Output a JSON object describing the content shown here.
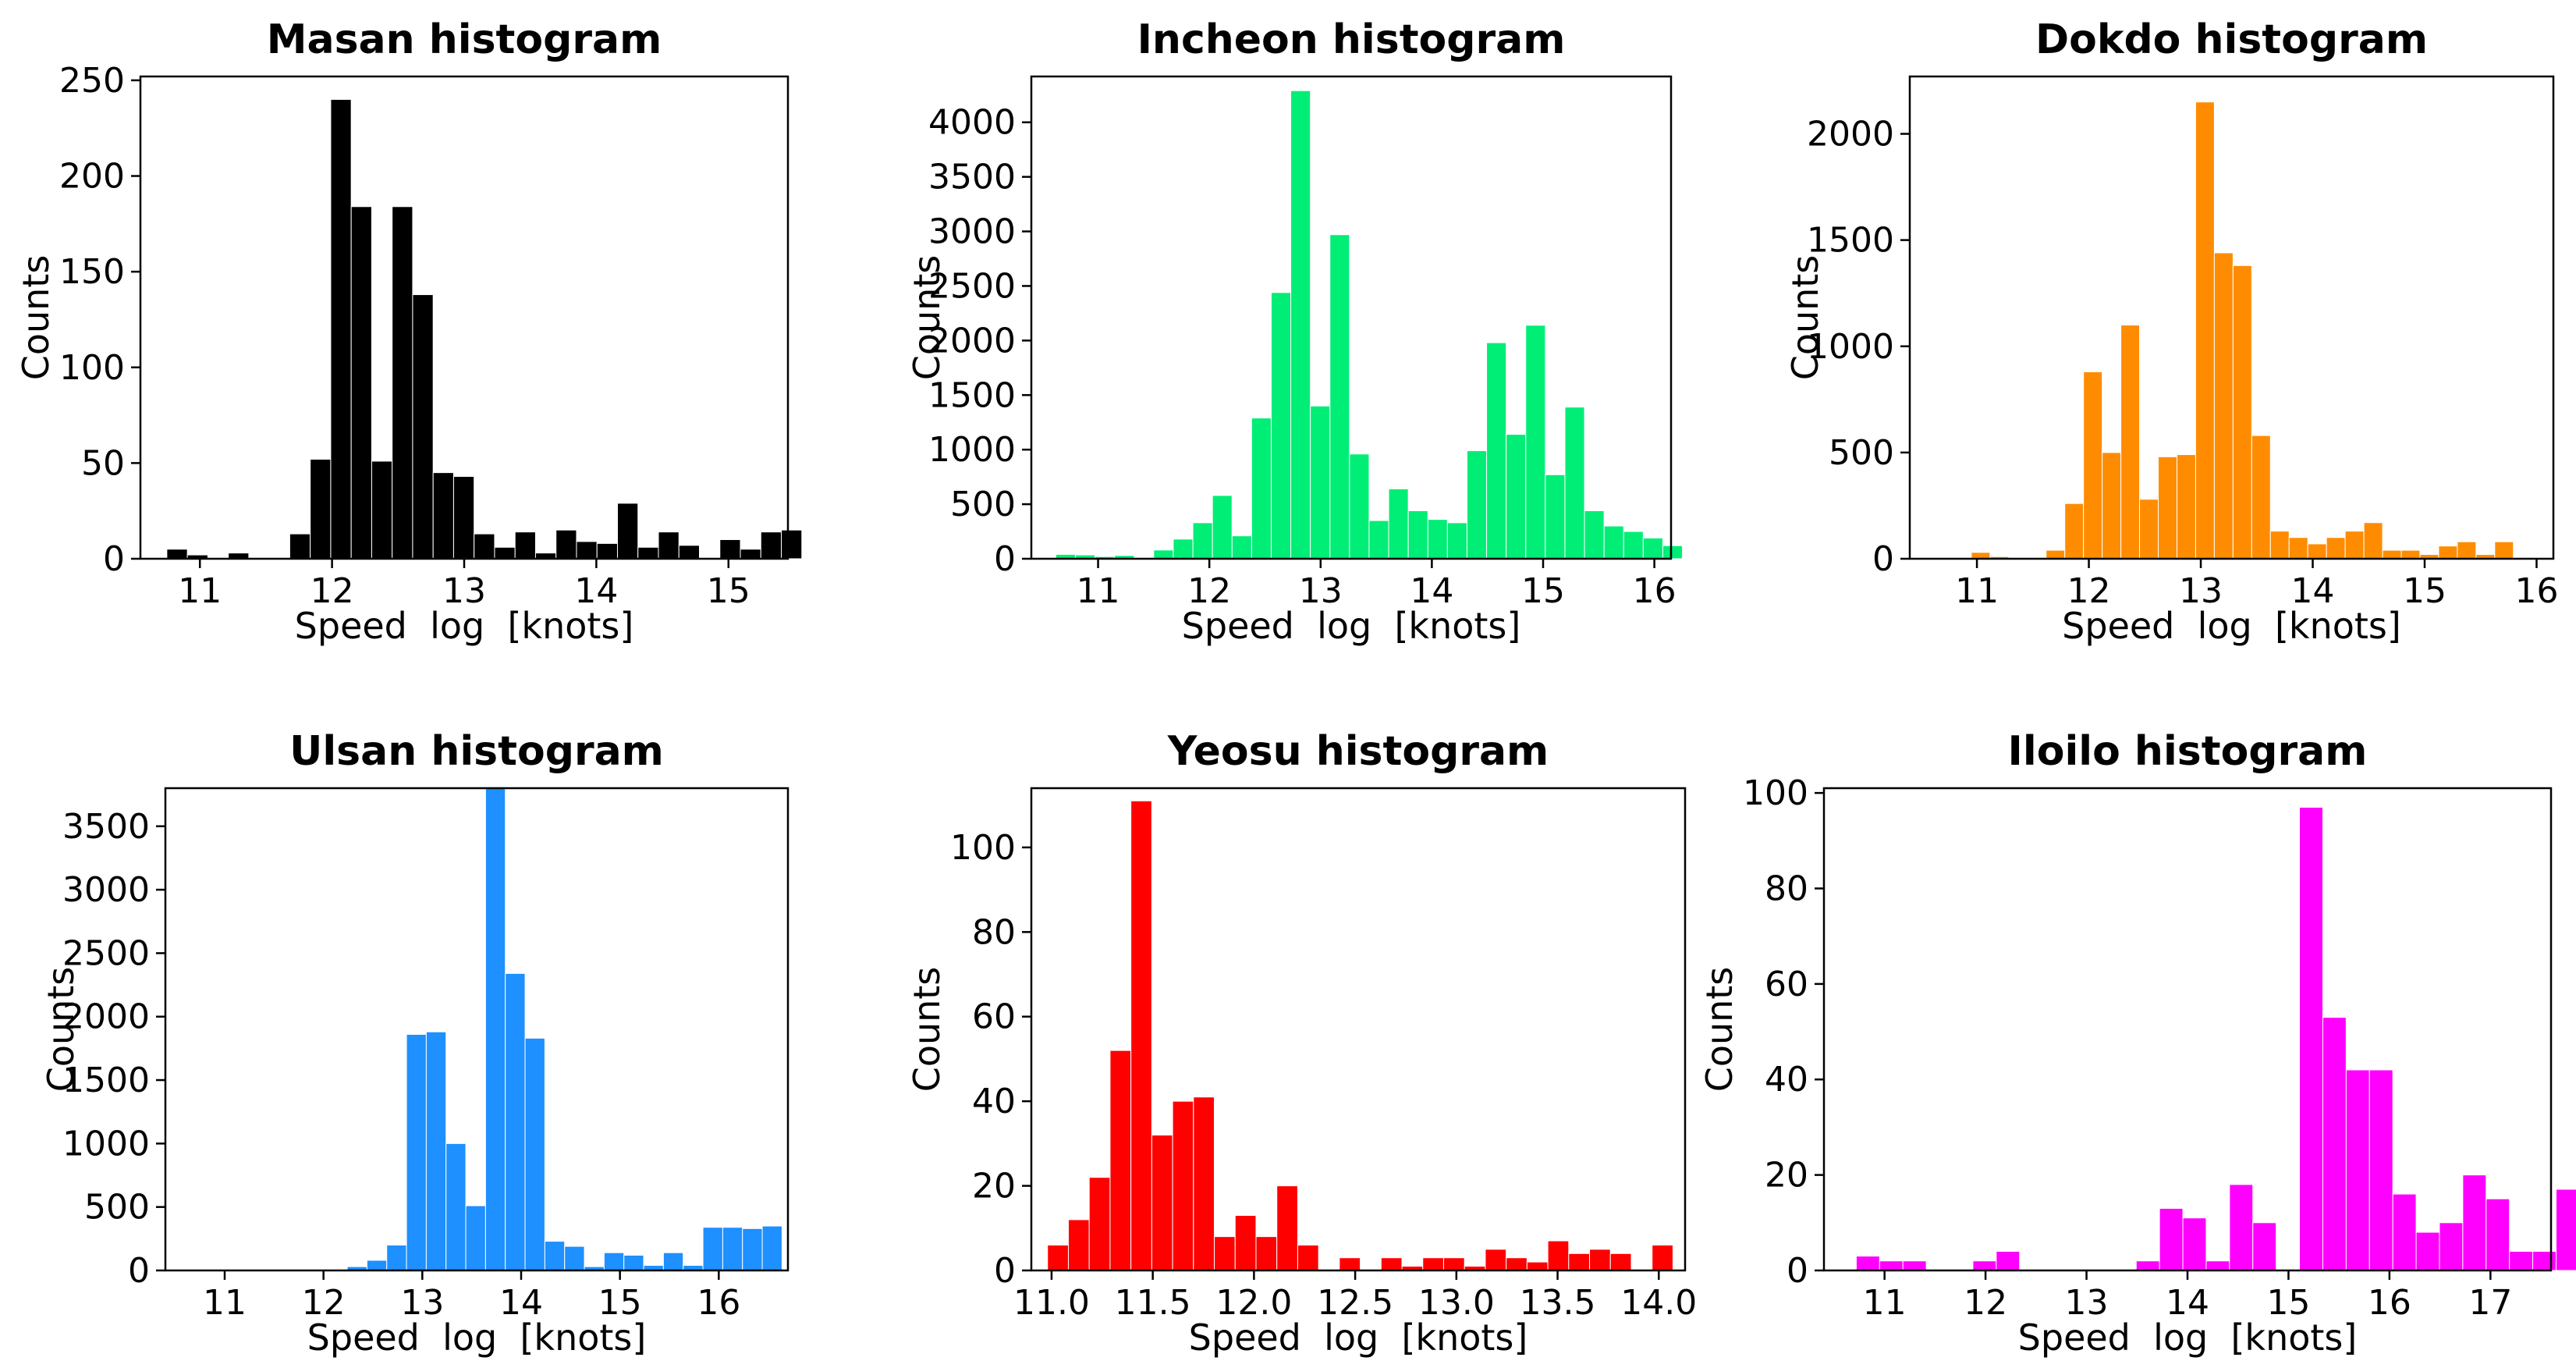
{
  "chart_data": [
    {
      "type": "bar",
      "title": "Masan  histogram",
      "xlabel": "Speed  log  [knots]",
      "ylabel": "Counts",
      "color": "#000000",
      "xlim": [
        10.55,
        15.45
      ],
      "ylim": [
        0,
        252
      ],
      "xticks": [
        11,
        12,
        13,
        14,
        15
      ],
      "xtick_labels": [
        "11",
        "12",
        "13",
        "14",
        "15"
      ],
      "yticks": [
        0,
        50,
        100,
        150,
        200,
        250
      ],
      "ytick_labels": [
        "0",
        "50",
        "100",
        "150",
        "200",
        "250"
      ],
      "bin_start": 10.75,
      "bin_width": 0.155,
      "values": [
        5,
        2,
        0,
        3,
        0,
        0,
        13,
        52,
        240,
        184,
        51,
        184,
        138,
        45,
        43,
        13,
        6,
        14,
        3,
        15,
        9,
        8,
        29,
        6,
        14,
        7,
        0,
        10,
        5,
        14,
        15
      ]
    },
    {
      "type": "bar",
      "title": "Incheon  histogram",
      "xlabel": "Speed  log  [knots]",
      "ylabel": "Counts",
      "color": "#00ee76",
      "xlim": [
        10.4,
        16.15
      ],
      "ylim": [
        0,
        4420
      ],
      "xticks": [
        11,
        12,
        13,
        14,
        15,
        16
      ],
      "xtick_labels": [
        "11",
        "12",
        "13",
        "14",
        "15",
        "16"
      ],
      "yticks": [
        0,
        500,
        1000,
        1500,
        2000,
        2500,
        3000,
        3500,
        4000
      ],
      "ytick_labels": [
        "0",
        "500",
        "1000",
        "1500",
        "2000",
        "2500",
        "3000",
        "3500",
        "4000"
      ],
      "bin_start": 10.62,
      "bin_width": 0.176,
      "values": [
        40,
        35,
        20,
        30,
        0,
        80,
        180,
        330,
        580,
        210,
        1290,
        2440,
        4290,
        1400,
        2970,
        960,
        350,
        640,
        440,
        360,
        330,
        990,
        1980,
        1140,
        2140,
        770,
        1390,
        440,
        300,
        250,
        190,
        120
      ]
    },
    {
      "type": "bar",
      "title": "Dokdo  histogram",
      "xlabel": "Speed  log  [knots]",
      "ylabel": "Counts",
      "color": "#ff8c00",
      "xlim": [
        10.4,
        16.15
      ],
      "ylim": [
        0,
        2270
      ],
      "xticks": [
        11,
        12,
        13,
        14,
        15,
        16
      ],
      "xtick_labels": [
        "11",
        "12",
        "13",
        "14",
        "15",
        "16"
      ],
      "yticks": [
        0,
        500,
        1000,
        1500,
        2000
      ],
      "ytick_labels": [
        "0",
        "500",
        "1000",
        "1500",
        "2000"
      ],
      "bin_start": 10.95,
      "bin_width": 0.167,
      "values": [
        30,
        10,
        0,
        0,
        40,
        260,
        880,
        500,
        1100,
        280,
        480,
        490,
        2150,
        1440,
        1380,
        580,
        130,
        100,
        70,
        100,
        130,
        170,
        40,
        40,
        20,
        60,
        80,
        20,
        80
      ]
    },
    {
      "type": "bar",
      "title": "Ulsan  histogram",
      "xlabel": "Speed  log  [knots]",
      "ylabel": "Counts",
      "color": "#1e90ff",
      "xlim": [
        10.4,
        16.7
      ],
      "ylim": [
        0,
        3800
      ],
      "xticks": [
        11,
        12,
        13,
        14,
        15,
        16
      ],
      "xtick_labels": [
        "11",
        "12",
        "13",
        "14",
        "15",
        "16"
      ],
      "yticks": [
        0,
        500,
        1000,
        1500,
        2000,
        2500,
        3000,
        3500
      ],
      "ytick_labels": [
        "0",
        "500",
        "1000",
        "1500",
        "2000",
        "2500",
        "3000",
        "3500"
      ],
      "bin_start": 12.24,
      "bin_width": 0.2,
      "values": [
        30,
        80,
        200,
        1860,
        1880,
        1000,
        510,
        3810,
        2340,
        1830,
        230,
        190,
        30,
        140,
        120,
        40,
        140,
        40,
        340,
        340,
        330,
        350
      ]
    },
    {
      "type": "bar",
      "title": "Yeosu  histogram",
      "xlabel": "Speed  log  [knots]",
      "ylabel": "Counts",
      "color": "#ff0000",
      "xlim": [
        10.9,
        14.13
      ],
      "ylim": [
        0,
        114
      ],
      "xticks": [
        11.0,
        11.5,
        12.0,
        12.5,
        13.0,
        13.5,
        14.0
      ],
      "xtick_labels": [
        "11.0",
        "11.5",
        "12.0",
        "12.5",
        "13.0",
        "13.5",
        "14.0"
      ],
      "yticks": [
        0,
        20,
        40,
        60,
        80,
        100
      ],
      "ytick_labels": [
        "0",
        "20",
        "40",
        "60",
        "80",
        "100"
      ],
      "bin_start": 10.98,
      "bin_width": 0.103,
      "values": [
        6,
        12,
        22,
        52,
        111,
        32,
        40,
        41,
        8,
        13,
        8,
        20,
        6,
        0,
        3,
        0,
        3,
        1,
        3,
        3,
        1,
        5,
        3,
        2,
        7,
        4,
        5,
        4,
        0,
        6
      ]
    },
    {
      "type": "bar",
      "title": "Iloilo  histogram",
      "xlabel": "Speed  log  [knots]",
      "ylabel": "Counts",
      "color": "#ff00ff",
      "xlim": [
        10.4,
        17.6
      ],
      "ylim": [
        0,
        101
      ],
      "xticks": [
        11,
        12,
        13,
        14,
        15,
        16,
        17
      ],
      "xtick_labels": [
        "11",
        "12",
        "13",
        "14",
        "15",
        "16",
        "17"
      ],
      "yticks": [
        0,
        20,
        40,
        60,
        80,
        100
      ],
      "ytick_labels": [
        "0",
        "20",
        "40",
        "60",
        "80",
        "100"
      ],
      "bin_start": 10.72,
      "bin_width": 0.231,
      "values": [
        3,
        2,
        2,
        0,
        0,
        2,
        4,
        0,
        0,
        0,
        0,
        0,
        2,
        13,
        11,
        2,
        18,
        10,
        0,
        97,
        53,
        42,
        42,
        16,
        8,
        10,
        20,
        15,
        4,
        4,
        17
      ]
    }
  ]
}
